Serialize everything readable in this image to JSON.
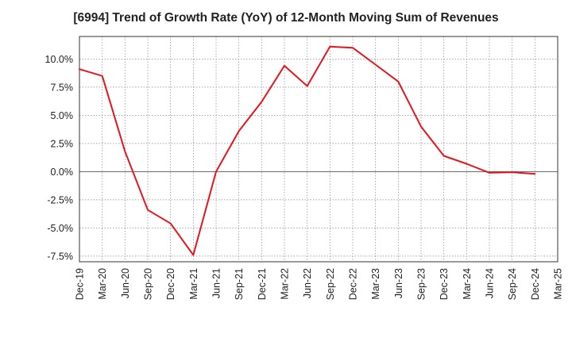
{
  "colors": {
    "series": "#e8141b",
    "background": "#ffffff",
    "grid": "#888888",
    "axis": "#333333",
    "text": "#222222"
  },
  "chart_data": {
    "type": "line",
    "title": "[6994]  Trend of Growth Rate (YoY) of 12-Month Moving Sum of Revenues",
    "xlabel": "",
    "ylabel": "",
    "grid": true,
    "legend": "none",
    "ylim": [
      -8.0,
      12.0
    ],
    "y_ticks": [
      10.0,
      7.5,
      5.0,
      2.5,
      0.0,
      -2.5,
      -5.0,
      -7.5
    ],
    "y_tick_labels": [
      "10.0%",
      "7.5%",
      "5.0%",
      "2.5%",
      "0.0%",
      "-2.5%",
      "-5.0%",
      "-7.5%"
    ],
    "x_tick_labels": [
      "Dec-19",
      "Mar-20",
      "Jun-20",
      "Sep-20",
      "Dec-20",
      "Mar-21",
      "Jun-21",
      "Sep-21",
      "Dec-21",
      "Mar-22",
      "Jun-22",
      "Sep-22",
      "Dec-22",
      "Mar-23",
      "Jun-23",
      "Sep-23",
      "Dec-23",
      "Mar-24",
      "Jun-24",
      "Sep-24",
      "Dec-24",
      "Mar-25"
    ],
    "series": [
      {
        "x": [
          "Dec-19",
          "Mar-20",
          "Jun-20",
          "Sep-20",
          "Dec-20",
          "Mar-21",
          "Jun-21",
          "Sep-21",
          "Dec-21",
          "Mar-22",
          "Jun-22",
          "Sep-22",
          "Dec-22",
          "Mar-23",
          "Jun-23",
          "Sep-23",
          "Dec-23",
          "Mar-24",
          "Jun-24",
          "Sep-24",
          "Dec-24"
        ],
        "values": [
          9.1,
          8.5,
          1.8,
          -3.4,
          -4.6,
          -7.4,
          0.0,
          3.6,
          6.2,
          9.4,
          7.6,
          11.1,
          11.0,
          9.5,
          8.0,
          4.0,
          1.4,
          0.7,
          -0.1,
          -0.05,
          -0.2
        ]
      }
    ]
  }
}
